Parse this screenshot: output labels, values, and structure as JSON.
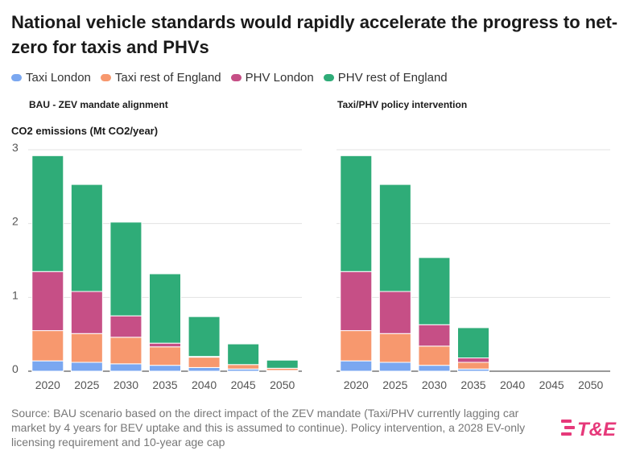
{
  "title": "National vehicle standards would rapidly accelerate the progress to net-zero for taxis and PHVs",
  "source": "Source: BAU scenario based on the direct impact of the ZEV mandate (Taxi/PHV currently lagging car market by 4 years for BEV uptake and this is assumed to continue). Policy intervention, a 2028 EV-only licensing requirement and 10-year age cap",
  "logo_text": "T&E",
  "y_axis_title": "CO2 emissions (Mt CO2/year)",
  "legend": [
    {
      "name": "Taxi London",
      "color": "#7aa7f0"
    },
    {
      "name": "Taxi rest of England",
      "color": "#f7986e"
    },
    {
      "name": "PHV London",
      "color": "#c64f86"
    },
    {
      "name": "PHV rest of England",
      "color": "#2fac78"
    }
  ],
  "chart_data": [
    {
      "type": "bar",
      "stacked": true,
      "title": "BAU - ZEV mandate alignment",
      "ylabel": "CO2 emissions (Mt CO2/year)",
      "ylim": [
        0,
        3
      ],
      "yticks": [
        0,
        1,
        2,
        3
      ],
      "categories": [
        "2020",
        "2025",
        "2030",
        "2035",
        "2040",
        "2045",
        "2050"
      ],
      "series": [
        {
          "name": "Taxi London",
          "values": [
            0.14,
            0.12,
            0.1,
            0.08,
            0.05,
            0.03,
            0.01
          ]
        },
        {
          "name": "Taxi rest of England",
          "values": [
            0.41,
            0.39,
            0.36,
            0.25,
            0.14,
            0.06,
            0.03
          ]
        },
        {
          "name": "PHV London",
          "values": [
            0.8,
            0.57,
            0.29,
            0.05,
            0.01,
            0.0,
            0.0
          ]
        },
        {
          "name": "PHV rest of England",
          "values": [
            1.57,
            1.45,
            1.27,
            0.94,
            0.54,
            0.28,
            0.11
          ]
        }
      ]
    },
    {
      "type": "bar",
      "stacked": true,
      "title": "Taxi/PHV policy intervention",
      "ylim": [
        0,
        3
      ],
      "yticks": [
        0,
        1,
        2,
        3
      ],
      "categories": [
        "2020",
        "2025",
        "2030",
        "2035",
        "2040",
        "2045",
        "2050"
      ],
      "series": [
        {
          "name": "Taxi London",
          "values": [
            0.14,
            0.12,
            0.08,
            0.03,
            0,
            0,
            0
          ]
        },
        {
          "name": "Taxi rest of England",
          "values": [
            0.41,
            0.39,
            0.26,
            0.09,
            0,
            0,
            0
          ]
        },
        {
          "name": "PHV London",
          "values": [
            0.8,
            0.57,
            0.29,
            0.06,
            0,
            0,
            0
          ]
        },
        {
          "name": "PHV rest of England",
          "values": [
            1.57,
            1.45,
            0.91,
            0.41,
            0,
            0,
            0
          ]
        }
      ]
    }
  ]
}
